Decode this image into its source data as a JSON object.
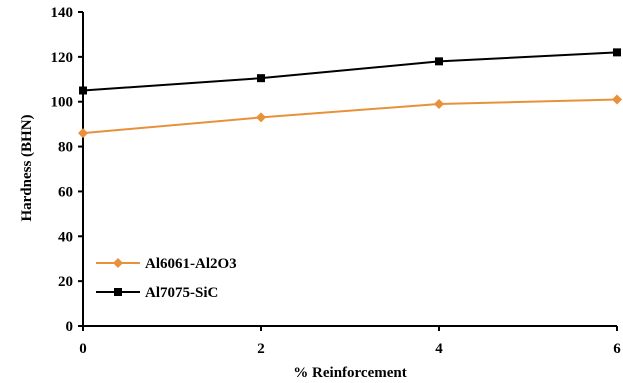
{
  "chart_data": {
    "type": "line",
    "title": "",
    "xlabel": "% Reinforcement",
    "ylabel": "Hardness (BHN)",
    "x": [
      0,
      2,
      4,
      6
    ],
    "xlim": [
      0,
      6
    ],
    "ylim": [
      0,
      140
    ],
    "xticks": [
      "0",
      "2",
      "4",
      "6"
    ],
    "yticks": [
      "0",
      "20",
      "40",
      "60",
      "80",
      "100",
      "120",
      "140"
    ],
    "grid": false,
    "legend_position": "bottom-left",
    "series": [
      {
        "name": "Al6061-Al2O3",
        "values": [
          86,
          93,
          99,
          101
        ],
        "color": "#E8913A",
        "marker": "diamond"
      },
      {
        "name": "Al7075-SiC",
        "values": [
          105,
          110.5,
          118,
          122
        ],
        "color": "#000000",
        "marker": "square"
      }
    ]
  }
}
